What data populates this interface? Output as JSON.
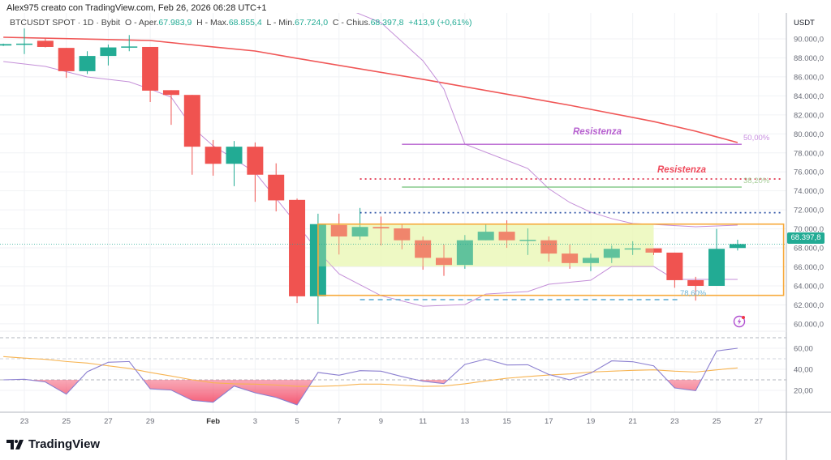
{
  "caption": "Alex975 creato con TradingView.com, Feb 26, 2026 06:28 UTC+1",
  "legend": {
    "symbol": "BTCUSDT SPOT · 1D · Bybit",
    "open_label": "O - Aper.",
    "open": "67.983,9",
    "high_label": "H - Max.",
    "high": "68.855,4",
    "low_label": "L - Min.",
    "low": "67.724,0",
    "close_label": "C - Chius.",
    "close": "68.397,8",
    "change": "+413,9 (+0,61%)"
  },
  "currency": "USDT",
  "last_price_tag": "68.397,8",
  "brand": "TradingView",
  "colors": {
    "up": "#22ab94",
    "down": "#f05350",
    "sma": "#f05656",
    "band": "#c48fd8",
    "rsi": "#8b7fd0",
    "rsi_ma": "#f7b452",
    "box": "#f7a93b",
    "zone": "#e9f7c0"
  },
  "chart_data": [
    {
      "type": "candlestick",
      "title": "BTCUSDT SPOT · 1D · Bybit",
      "ylim": [
        60000,
        90000
      ],
      "y_ticks": [
        {
          "value": 90000,
          "label": "90.000,0"
        },
        {
          "value": 88000,
          "label": "88.000,0"
        },
        {
          "value": 86000,
          "label": "86.000,0"
        },
        {
          "value": 84000,
          "label": "84.000,0"
        },
        {
          "value": 82000,
          "label": "82.000,0"
        },
        {
          "value": 80000,
          "label": "80.000,0"
        },
        {
          "value": 78000,
          "label": "78.000,0"
        },
        {
          "value": 76000,
          "label": "76.000,0"
        },
        {
          "value": 74000,
          "label": "74.000,0"
        },
        {
          "value": 72000,
          "label": "72.000,0"
        },
        {
          "value": 70000,
          "label": "70.000,0"
        },
        {
          "value": 68000,
          "label": "68.000,0"
        },
        {
          "value": 66000,
          "label": "66.000,0"
        },
        {
          "value": 64000,
          "label": "64.000,0"
        },
        {
          "value": 62000,
          "label": "62.000,0"
        },
        {
          "value": 60000,
          "label": "60.000,0"
        }
      ],
      "x_ticks": [
        {
          "date": "2026-01-23",
          "label": "23"
        },
        {
          "date": "2026-01-25",
          "label": "25"
        },
        {
          "date": "2026-01-27",
          "label": "27"
        },
        {
          "date": "2026-01-29",
          "label": "29"
        },
        {
          "date": "2026-02-01",
          "label": "Feb"
        },
        {
          "date": "2026-02-03",
          "label": "3"
        },
        {
          "date": "2026-02-05",
          "label": "5"
        },
        {
          "date": "2026-02-07",
          "label": "7"
        },
        {
          "date": "2026-02-09",
          "label": "9"
        },
        {
          "date": "2026-02-11",
          "label": "11"
        },
        {
          "date": "2026-02-13",
          "label": "13"
        },
        {
          "date": "2026-02-15",
          "label": "15"
        },
        {
          "date": "2026-02-17",
          "label": "17"
        },
        {
          "date": "2026-02-19",
          "label": "19"
        },
        {
          "date": "2026-02-21",
          "label": "21"
        },
        {
          "date": "2026-02-23",
          "label": "23"
        },
        {
          "date": "2026-02-25",
          "label": "25"
        },
        {
          "date": "2026-02-27",
          "label": "27"
        }
      ],
      "candles": [
        {
          "date": "2026-01-22",
          "o": 89300,
          "h": 89500,
          "l": 89250,
          "c": 89450
        },
        {
          "date": "2026-01-23",
          "o": 89450,
          "h": 91100,
          "l": 88400,
          "c": 89500
        },
        {
          "date": "2026-01-24",
          "o": 89800,
          "h": 90050,
          "l": 89100,
          "c": 89150
        },
        {
          "date": "2026-01-25",
          "o": 89050,
          "h": 89050,
          "l": 85900,
          "c": 86600
        },
        {
          "date": "2026-01-26",
          "o": 86600,
          "h": 88700,
          "l": 86300,
          "c": 88200
        },
        {
          "date": "2026-01-27",
          "o": 88200,
          "h": 89400,
          "l": 87200,
          "c": 89100
        },
        {
          "date": "2026-01-28",
          "o": 89100,
          "h": 90400,
          "l": 88700,
          "c": 89200
        },
        {
          "date": "2026-01-29",
          "o": 89150,
          "h": 89150,
          "l": 83350,
          "c": 84550
        },
        {
          "date": "2026-01-30",
          "o": 84600,
          "h": 84600,
          "l": 80950,
          "c": 84100
        },
        {
          "date": "2026-01-31",
          "o": 84100,
          "h": 84100,
          "l": 75700,
          "c": 78650
        },
        {
          "date": "2026-02-01",
          "o": 78650,
          "h": 79350,
          "l": 75600,
          "c": 76850
        },
        {
          "date": "2026-02-02",
          "o": 76850,
          "h": 79250,
          "l": 74500,
          "c": 78650
        },
        {
          "date": "2026-02-03",
          "o": 78650,
          "h": 79100,
          "l": 72850,
          "c": 75700
        },
        {
          "date": "2026-02-04",
          "o": 75700,
          "h": 76900,
          "l": 71840,
          "c": 73000
        },
        {
          "date": "2026-02-05",
          "o": 73050,
          "h": 73200,
          "l": 62200,
          "c": 62900
        },
        {
          "date": "2026-02-06",
          "o": 62900,
          "h": 71600,
          "l": 60000,
          "c": 70500
        },
        {
          "date": "2026-02-07",
          "o": 70400,
          "h": 71600,
          "l": 67300,
          "c": 69200
        },
        {
          "date": "2026-02-08",
          "o": 69200,
          "h": 72200,
          "l": 68850,
          "c": 70200
        },
        {
          "date": "2026-02-09",
          "o": 70200,
          "h": 71300,
          "l": 68250,
          "c": 70050
        },
        {
          "date": "2026-02-10",
          "o": 70050,
          "h": 70450,
          "l": 67850,
          "c": 68800
        },
        {
          "date": "2026-02-11",
          "o": 68800,
          "h": 69200,
          "l": 65700,
          "c": 66950
        },
        {
          "date": "2026-02-12",
          "o": 66950,
          "h": 68350,
          "l": 65050,
          "c": 66200
        },
        {
          "date": "2026-02-13",
          "o": 66200,
          "h": 69350,
          "l": 65800,
          "c": 68800
        },
        {
          "date": "2026-02-14",
          "o": 68800,
          "h": 70450,
          "l": 68800,
          "c": 69700
        },
        {
          "date": "2026-02-15",
          "o": 69700,
          "h": 70900,
          "l": 68000,
          "c": 68800
        },
        {
          "date": "2026-02-16",
          "o": 68800,
          "h": 70050,
          "l": 67250,
          "c": 68850
        },
        {
          "date": "2026-02-17",
          "o": 68800,
          "h": 69200,
          "l": 66550,
          "c": 67400
        },
        {
          "date": "2026-02-18",
          "o": 67400,
          "h": 68350,
          "l": 65800,
          "c": 66400
        },
        {
          "date": "2026-02-19",
          "o": 66400,
          "h": 67400,
          "l": 65550,
          "c": 66950
        },
        {
          "date": "2026-02-20",
          "o": 66950,
          "h": 68250,
          "l": 66400,
          "c": 67900
        },
        {
          "date": "2026-02-21",
          "o": 67900,
          "h": 68700,
          "l": 67250,
          "c": 67950
        },
        {
          "date": "2026-02-22",
          "o": 67950,
          "h": 67950,
          "l": 67250,
          "c": 67500
        },
        {
          "date": "2026-02-23",
          "o": 67500,
          "h": 67500,
          "l": 63800,
          "c": 64600
        },
        {
          "date": "2026-02-24",
          "o": 64600,
          "h": 64950,
          "l": 62450,
          "c": 64000
        },
        {
          "date": "2026-02-25",
          "o": 64000,
          "h": 70000,
          "l": 64000,
          "c": 67900
        },
        {
          "date": "2026-02-26",
          "o": 67983.9,
          "h": 68855.4,
          "l": 67724.0,
          "c": 68397.8
        }
      ],
      "overlays": [
        {
          "kind": "sma",
          "points": [
            [
              "2026-01-22",
              90170
            ],
            [
              "2026-01-29",
              89830
            ],
            [
              "2026-02-01",
              89150
            ],
            [
              "2026-02-03",
              88720
            ],
            [
              "2026-02-05",
              87950
            ],
            [
              "2026-02-11",
              85740
            ],
            [
              "2026-02-18",
              83010
            ],
            [
              "2026-02-22",
              81300
            ],
            [
              "2026-02-24",
              80280
            ],
            [
              "2026-02-26",
              79090
            ]
          ]
        },
        {
          "kind": "band-upper",
          "points": [
            [
              "2026-02-07",
              93500
            ],
            [
              "2026-02-09",
              91710
            ],
            [
              "2026-02-11",
              87700
            ],
            [
              "2026-02-12",
              84710
            ],
            [
              "2026-02-13",
              78920
            ],
            [
              "2026-02-16",
              76360
            ],
            [
              "2026-02-17",
              74230
            ],
            [
              "2026-02-18",
              72780
            ],
            [
              "2026-02-19",
              71760
            ],
            [
              "2026-02-20",
              71080
            ],
            [
              "2026-02-21",
              70560
            ],
            [
              "2026-02-22",
              70470
            ],
            [
              "2026-02-24",
              70220
            ],
            [
              "2026-02-26",
              70390
            ]
          ]
        },
        {
          "kind": "band-lower",
          "points": [
            [
              "2026-01-22",
              87610
            ],
            [
              "2026-01-24",
              87100
            ],
            [
              "2026-01-26",
              85990
            ],
            [
              "2026-01-28",
              85480
            ],
            [
              "2026-01-29",
              84710
            ],
            [
              "2026-01-30",
              83860
            ],
            [
              "2026-01-31",
              80700
            ],
            [
              "2026-02-01",
              78740
            ],
            [
              "2026-02-02",
              77380
            ],
            [
              "2026-02-03",
              75930
            ],
            [
              "2026-02-04",
              73200
            ],
            [
              "2026-02-05",
              70470
            ],
            [
              "2026-02-06",
              67660
            ],
            [
              "2026-02-07",
              65270
            ],
            [
              "2026-02-09",
              62970
            ],
            [
              "2026-02-11",
              61860
            ],
            [
              "2026-02-13",
              62030
            ],
            [
              "2026-02-14",
              63140
            ],
            [
              "2026-02-16",
              63400
            ],
            [
              "2026-02-17",
              64170
            ],
            [
              "2026-02-19",
              64590
            ],
            [
              "2026-02-20",
              66040
            ],
            [
              "2026-02-22",
              66040
            ],
            [
              "2026-02-23",
              64680
            ],
            [
              "2026-02-26",
              64680
            ]
          ]
        }
      ],
      "annotations": {
        "resistance_purple": {
          "price": 78900,
          "from": "2026-02-10",
          "to": "2026-02-26",
          "label": "Resistenza",
          "fib_label": "50,00%"
        },
        "resistance_red": {
          "price": 75250,
          "from": "2026-02-08",
          "to": "2026-02-28",
          "label": "Resistenza"
        },
        "fib_382": {
          "price": 74400,
          "from": "2026-02-10",
          "to": "2026-02-26",
          "label": "38,20%"
        },
        "blue_dotted": {
          "price": 71700,
          "from": "2026-02-08",
          "to": "2026-02-28"
        },
        "range_box": {
          "top": 70500,
          "bottom": 63000,
          "from": "2026-02-06",
          "to": "2026-02-28"
        },
        "consolidation_zone": {
          "top": 70500,
          "bottom": 66050,
          "from": "2026-02-06",
          "to": "2026-02-22"
        },
        "fib_786": {
          "price": 62550,
          "from": "2026-02-08",
          "to": "2026-02-23",
          "label": "78,60%"
        },
        "last_price": 68397.8
      }
    },
    {
      "type": "line",
      "ylim": [
        0,
        70
      ],
      "levels": [
        70,
        50,
        30
      ],
      "y_ticks": [
        {
          "value": 60,
          "label": "60,00"
        },
        {
          "value": 40,
          "label": "40,00"
        },
        {
          "value": 20,
          "label": "20,00"
        }
      ],
      "series": [
        {
          "kind": "rsi",
          "values": [
            30,
            30.5,
            28,
            16.4,
            37.7,
            46.7,
            47.4,
            21.5,
            20.3,
            10.5,
            8.7,
            24.1,
            17.7,
            13.3,
            6.2,
            37,
            34.4,
            38.7,
            38.2,
            33.1,
            28.7,
            26.4,
            44.6,
            49.7,
            44.1,
            44.3,
            35.1,
            30,
            36.4,
            48,
            47.2,
            43.3,
            22.3,
            19.7,
            57.4,
            60
          ]
        },
        {
          "kind": "rsi-ma",
          "values": [
            52.1,
            50.6,
            49.5,
            47.4,
            45.9,
            43.3,
            40.8,
            37,
            33.6,
            30,
            27.2,
            26.2,
            25.9,
            25.1,
            23.8,
            23.8,
            24.4,
            25.9,
            25.9,
            24.9,
            23.8,
            24.1,
            26.2,
            29,
            31.5,
            33.1,
            34.6,
            35.6,
            37.4,
            38.2,
            39,
            39.5,
            38.2,
            37.4,
            39.5,
            41.3
          ]
        }
      ],
      "start_date": "2026-01-22"
    }
  ]
}
